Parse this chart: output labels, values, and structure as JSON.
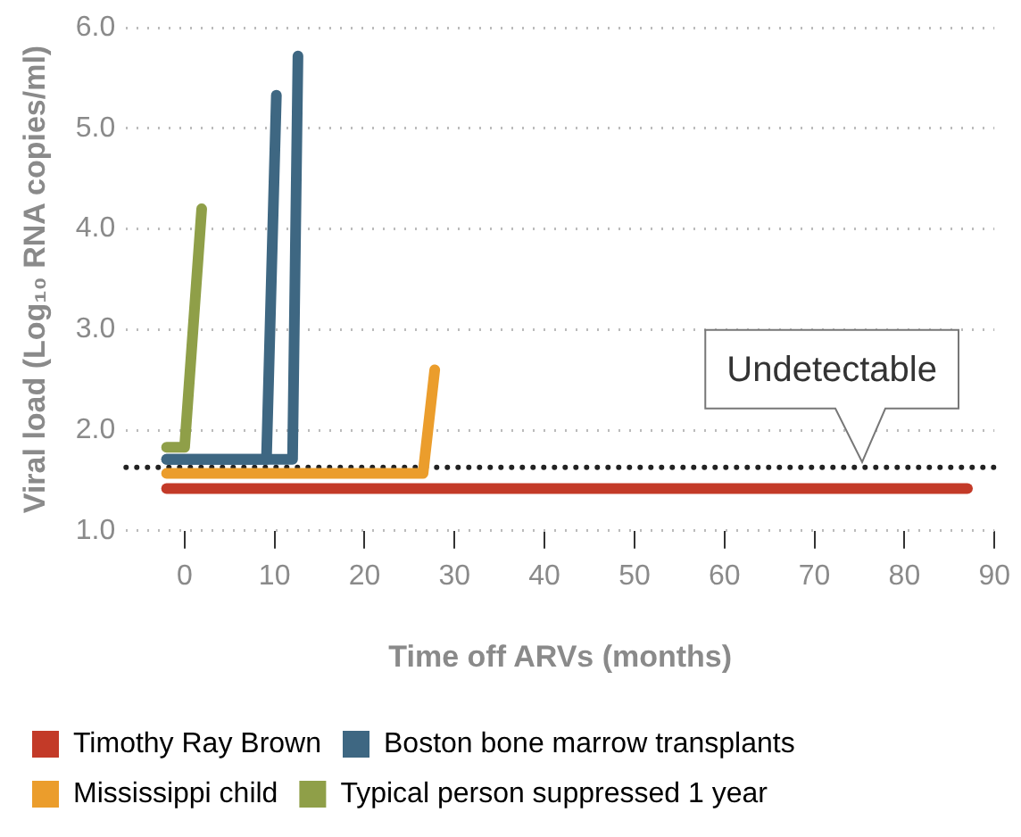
{
  "chart_data": {
    "type": "line",
    "xlabel": "Time off ARVs (months)",
    "ylabel": "Viral load (Log₁₀ RNA copies/ml)",
    "xlim": [
      -6.5,
      90
    ],
    "xticks": [
      0,
      10,
      20,
      30,
      40,
      50,
      60,
      70,
      80,
      90
    ],
    "ylim": [
      1,
      6
    ],
    "yticks": [
      {
        "value": 1,
        "label": "1.0"
      },
      {
        "value": 2,
        "label": "2.0"
      },
      {
        "value": 3,
        "label": "3.0"
      },
      {
        "value": 4,
        "label": "4.0"
      },
      {
        "value": 5,
        "label": "5.0"
      },
      {
        "value": 6,
        "label": "6.0"
      }
    ],
    "grid": "y",
    "legend": "bottom",
    "marker": "none",
    "line_style": "solid",
    "series": [
      {
        "name": "Timothy Ray Brown",
        "color": "#c33a28",
        "x": [
          -2,
          87
        ],
        "values": [
          1.42,
          1.42
        ]
      },
      {
        "name": "Boston bone marrow transplants",
        "color": "#3e6782",
        "x": [
          -2,
          9.1,
          10.2
        ],
        "values": [
          1.71,
          1.71,
          5.33
        ]
      },
      {
        "name": "Mississippi child",
        "color": "#eb9d2c",
        "x": [
          -2,
          26.5,
          27.8
        ],
        "values": [
          1.57,
          1.57,
          2.6
        ]
      },
      {
        "name": "Typical person suppressed 1 year",
        "color": "#8f9f48",
        "x": [
          -2,
          0,
          1.9
        ],
        "values": [
          1.83,
          1.83,
          4.2
        ]
      },
      {
        "color": "#3e6782",
        "x": [
          -2,
          12,
          12.6
        ],
        "values": [
          1.71,
          1.71,
          5.72
        ]
      }
    ],
    "ref_lines": [
      {
        "axis": "y",
        "value": 1.63,
        "color": "#222222",
        "line_style": "dotted"
      }
    ],
    "annotations": [
      {
        "text": "Undetectable",
        "x": 75.3,
        "y": 1.63
      }
    ]
  }
}
